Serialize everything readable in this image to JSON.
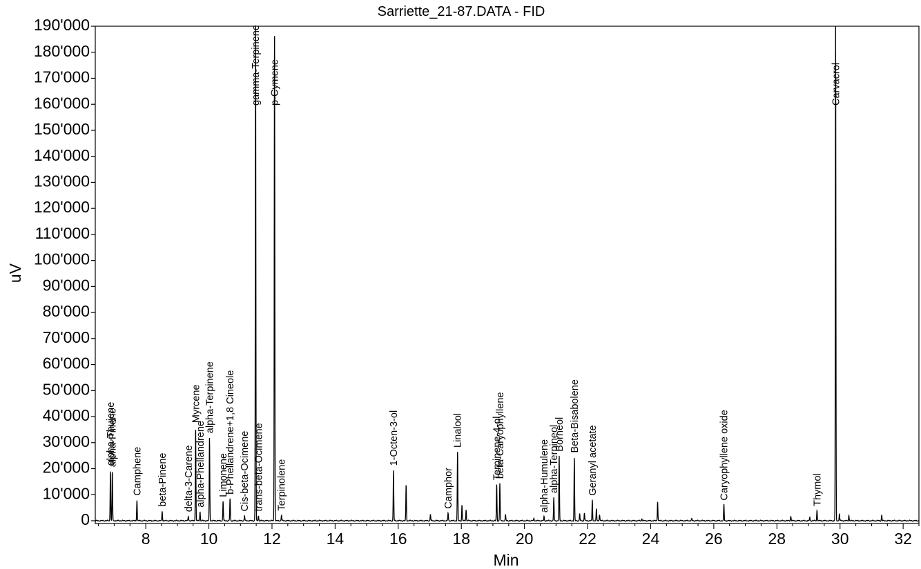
{
  "chart_data": {
    "type": "line",
    "title": "Sarriette_21-87.DATA - FID",
    "xlabel": "Min",
    "ylabel": "uV",
    "xlim": [
      6.4,
      32.5
    ],
    "ylim": [
      -4000,
      190000
    ],
    "x_ticks": [
      8,
      10,
      12,
      14,
      16,
      18,
      20,
      22,
      24,
      26,
      28,
      30,
      32
    ],
    "y_ticks": [
      0,
      10000,
      20000,
      30000,
      40000,
      50000,
      60000,
      70000,
      80000,
      90000,
      100000,
      110000,
      120000,
      130000,
      140000,
      150000,
      160000,
      170000,
      180000,
      190000
    ],
    "y_tick_labels": [
      "0",
      "10'000",
      "20'000",
      "30'000",
      "40'000",
      "50'000",
      "60'000",
      "70'000",
      "80'000",
      "90'000",
      "100'000",
      "110'000",
      "120'000",
      "130'000",
      "140'000",
      "150'000",
      "160'000",
      "170'000",
      "180'000",
      "190'000"
    ],
    "grid": false,
    "baseline": 0,
    "line_color": "#000000",
    "peaks": [
      {
        "name": "alpha-Thujene",
        "rt": 6.88,
        "height": 19500
      },
      {
        "name": "alpha-Pinene",
        "rt": 6.94,
        "height": 19000
      },
      {
        "name": "Camphene",
        "rt": 7.72,
        "height": 8000
      },
      {
        "name": "beta-Pinene",
        "rt": 8.52,
        "height": 3800
      },
      {
        "name": "delta-3-Carene",
        "rt": 9.35,
        "height": 1800
      },
      {
        "name": "Myrcene",
        "rt": 9.58,
        "height": 36000
      },
      {
        "name": "alpha-Phellandrene",
        "rt": 9.72,
        "height": 3500
      },
      {
        "name": "alpha-Terpinene",
        "rt": 10.02,
        "height": 32000
      },
      {
        "name": "Limonene",
        "rt": 10.45,
        "height": 7500
      },
      {
        "name": "b-Phellandrene+1,8 Cineole",
        "rt": 10.67,
        "height": 8500
      },
      {
        "name": "Cis-beta-Ocimene",
        "rt": 11.13,
        "height": 2000
      },
      {
        "name": "gamma-Terpinene",
        "rt": 11.48,
        "height": 190000
      },
      {
        "name": "trans-beta-Ocimene",
        "rt": 11.57,
        "height": 2000
      },
      {
        "name": "p-Cymene",
        "rt": 12.08,
        "height": 190000
      },
      {
        "name": "Terpinolene",
        "rt": 12.3,
        "height": 2200
      },
      {
        "name": "1-Octen-3-ol",
        "rt": 15.85,
        "height": 19500
      },
      {
        "name": "Camphor",
        "rt": 17.58,
        "height": 3000
      },
      {
        "name": "Linalool",
        "rt": 17.88,
        "height": 26500
      },
      {
        "name": "Terpinene-4-ol",
        "rt": 19.12,
        "height": 14000
      },
      {
        "name": "beta-Caryophyllene",
        "rt": 19.22,
        "height": 14500
      },
      {
        "name": "alpha-Humulene",
        "rt": 20.62,
        "height": 1500
      },
      {
        "name": "alpha-Terpineol",
        "rt": 20.93,
        "height": 9000
      },
      {
        "name": "Borneol",
        "rt": 21.1,
        "height": 25000
      },
      {
        "name": "Beta-Bisabolene",
        "rt": 21.58,
        "height": 24500
      },
      {
        "name": "Geranyl acetate",
        "rt": 22.15,
        "height": 8000
      },
      {
        "name": "Caryophyllene oxide",
        "rt": 26.32,
        "height": 6200
      },
      {
        "name": "Thymol",
        "rt": 29.27,
        "height": 4000
      },
      {
        "name": "Carvacrol",
        "rt": 29.86,
        "height": 190000
      }
    ],
    "unlabeled_peaks": [
      {
        "rt": 16.25,
        "height": 14000
      },
      {
        "rt": 17.02,
        "height": 2500
      },
      {
        "rt": 18.02,
        "height": 6000
      },
      {
        "rt": 18.15,
        "height": 4200
      },
      {
        "rt": 19.4,
        "height": 2300
      },
      {
        "rt": 20.3,
        "height": 900
      },
      {
        "rt": 21.75,
        "height": 2700
      },
      {
        "rt": 21.9,
        "height": 3000
      },
      {
        "rt": 22.28,
        "height": 4500
      },
      {
        "rt": 22.38,
        "height": 2500
      },
      {
        "rt": 23.72,
        "height": 800
      },
      {
        "rt": 24.22,
        "height": 7500
      },
      {
        "rt": 25.3,
        "height": 700
      },
      {
        "rt": 28.44,
        "height": 1800
      },
      {
        "rt": 29.04,
        "height": 1200
      },
      {
        "rt": 29.98,
        "height": 2800
      },
      {
        "rt": 30.28,
        "height": 2000
      },
      {
        "rt": 31.32,
        "height": 2200
      }
    ]
  }
}
